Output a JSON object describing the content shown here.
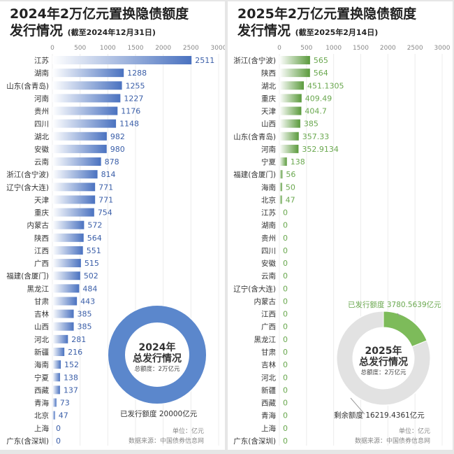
{
  "chart_data": [
    {
      "type": "bar",
      "orientation": "horizontal",
      "title_line1": "2024年2万亿元置换隐债额度",
      "title_line2": "发行情况",
      "subtitle": "(截至2024年12月31日)",
      "xlim": [
        0,
        3000
      ],
      "xticks": [
        0,
        500,
        1000,
        1500,
        2000,
        2500,
        3000
      ],
      "grid": true,
      "bar_color": "#4a72c0",
      "value_color": "#3a5ea8",
      "categories": [
        "江苏",
        "湖南",
        "山东(含青岛)",
        "河南",
        "贵州",
        "四川",
        "湖北",
        "安徽",
        "云南",
        "浙江(含宁波)",
        "辽宁(含大连)",
        "天津",
        "重庆",
        "内蒙古",
        "陕西",
        "江西",
        "广西",
        "福建(含厦门)",
        "黑龙江",
        "甘肃",
        "吉林",
        "山西",
        "河北",
        "新疆",
        "海南",
        "宁夏",
        "西藏",
        "青海",
        "北京",
        "上海",
        "广东(含深圳)"
      ],
      "values": [
        2511,
        1288,
        1255,
        1227,
        1176,
        1148,
        982,
        980,
        878,
        814,
        771,
        771,
        754,
        572,
        564,
        551,
        515,
        502,
        484,
        443,
        385,
        385,
        281,
        216,
        152,
        138,
        137,
        73,
        47,
        0,
        0
      ],
      "donut": {
        "type": "pie",
        "center_line1": "2024年",
        "center_line2": "总发行情况",
        "center_line3": "总额度：2万亿元",
        "slices": [
          {
            "label": "已发行额度 20000亿元",
            "value": 20000,
            "color": "#5b87cc"
          }
        ]
      },
      "unit": "单位：亿元",
      "source": "数据来源：中国债券信息网"
    },
    {
      "type": "bar",
      "orientation": "horizontal",
      "title_line1": "2025年2万亿元置换隐债额度",
      "title_line2": "发行情况",
      "subtitle": "(截至2025年2月14日)",
      "xlim": [
        0,
        3000
      ],
      "xticks": [
        0,
        500,
        1000,
        1500,
        2000,
        2500,
        3000
      ],
      "grid": true,
      "bar_color": "#5a9a3c",
      "value_color": "#6aa84f",
      "categories": [
        "浙江(含宁波)",
        "陕西",
        "湖北",
        "重庆",
        "天津",
        "山西",
        "山东(含青岛)",
        "河南",
        "宁夏",
        "福建(含厦门)",
        "海南",
        "北京",
        "江苏",
        "湖南",
        "贵州",
        "四川",
        "安徽",
        "云南",
        "辽宁(含大连)",
        "内蒙古",
        "江西",
        "广西",
        "黑龙江",
        "甘肃",
        "吉林",
        "河北",
        "新疆",
        "西藏",
        "青海",
        "上海",
        "广东(含深圳)"
      ],
      "values": [
        565,
        564,
        451.1305,
        409.49,
        404.7,
        385,
        357.33,
        352.9134,
        138,
        56,
        50,
        47,
        0,
        0,
        0,
        0,
        0,
        0,
        0,
        0,
        0,
        0,
        0,
        0,
        0,
        0,
        0,
        0,
        0,
        0,
        0
      ],
      "value_labels": [
        "565",
        "564",
        "451.1305",
        "409.49",
        "404.7",
        "385",
        "357.33",
        "352.9134",
        "138",
        "56",
        "50",
        "47",
        "0",
        "0",
        "0",
        "0",
        "0",
        "0",
        "0",
        "0",
        "0",
        "0",
        "0",
        "0",
        "0",
        "0",
        "0",
        "0",
        "0",
        "0",
        "0"
      ],
      "donut": {
        "type": "pie",
        "center_line1": "2025年",
        "center_line2": "总发行情况",
        "center_line3": "总额度：2万亿元",
        "slices": [
          {
            "label": "已发行额度 3780.5639亿元",
            "value": 3780.5639,
            "color": "#7dbb5a"
          },
          {
            "label": "剩余额度 16219.4361亿元",
            "value": 16219.4361,
            "color": "#e2e2e2"
          }
        ]
      },
      "unit": "单位：亿元",
      "source": "数据来源：中国债券信息网"
    }
  ]
}
